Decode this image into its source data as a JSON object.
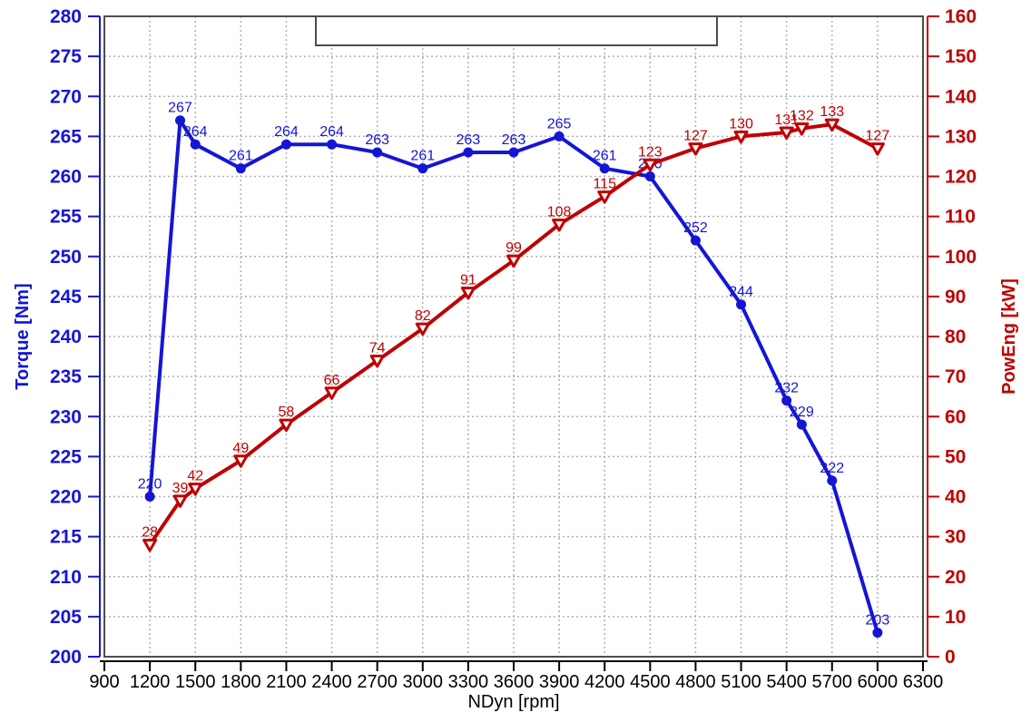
{
  "chart_data": {
    "type": "line",
    "title": "",
    "xlabel": "NDyn [rpm]",
    "x_axis": {
      "min": 900,
      "max": 6300,
      "ticks": [
        900,
        1200,
        1500,
        1800,
        2100,
        2400,
        2700,
        3000,
        3300,
        3600,
        3900,
        4200,
        4500,
        4800,
        5100,
        5400,
        5700,
        6000,
        6300
      ]
    },
    "left_axis": {
      "label": "Torque [Nm]",
      "min": 200,
      "max": 280,
      "ticks": [
        200,
        205,
        210,
        215,
        220,
        225,
        230,
        235,
        240,
        245,
        250,
        255,
        260,
        265,
        270,
        275,
        280
      ],
      "color": "#1515D6"
    },
    "right_axis": {
      "label": "PowEng [kW]",
      "min": 0,
      "max": 160,
      "ticks": [
        0,
        10,
        20,
        30,
        40,
        50,
        60,
        70,
        80,
        90,
        100,
        110,
        120,
        130,
        140,
        150,
        160
      ],
      "color": "#C00000"
    },
    "x": [
      1200,
      1400,
      1500,
      1800,
      2100,
      2400,
      2700,
      3000,
      3300,
      3600,
      3900,
      4200,
      4500,
      4800,
      5100,
      5400,
      5500,
      5700,
      6000
    ],
    "series": [
      {
        "name": "Torque",
        "axis": "left",
        "color": "#1515D6",
        "marker": "circle",
        "values": [
          220,
          267,
          264,
          261,
          264,
          264,
          263,
          261,
          263,
          263,
          265,
          261,
          260,
          252,
          244,
          232,
          229,
          222,
          203
        ]
      },
      {
        "name": "PowEng",
        "axis": "right",
        "color": "#C00000",
        "marker": "triangle-down",
        "values": [
          28,
          39,
          42,
          49,
          58,
          66,
          74,
          82,
          91,
          99,
          108,
          115,
          123,
          127,
          130,
          131,
          132,
          133,
          127
        ]
      }
    ],
    "grid": true,
    "legend": {
      "visible": true,
      "position": "top-center",
      "entries": []
    }
  },
  "style": {
    "background": "#FFFFFF",
    "grid_color": "#B0B0B0",
    "frame_color": "#4D4D4D",
    "x_axis_color": "#000000"
  }
}
